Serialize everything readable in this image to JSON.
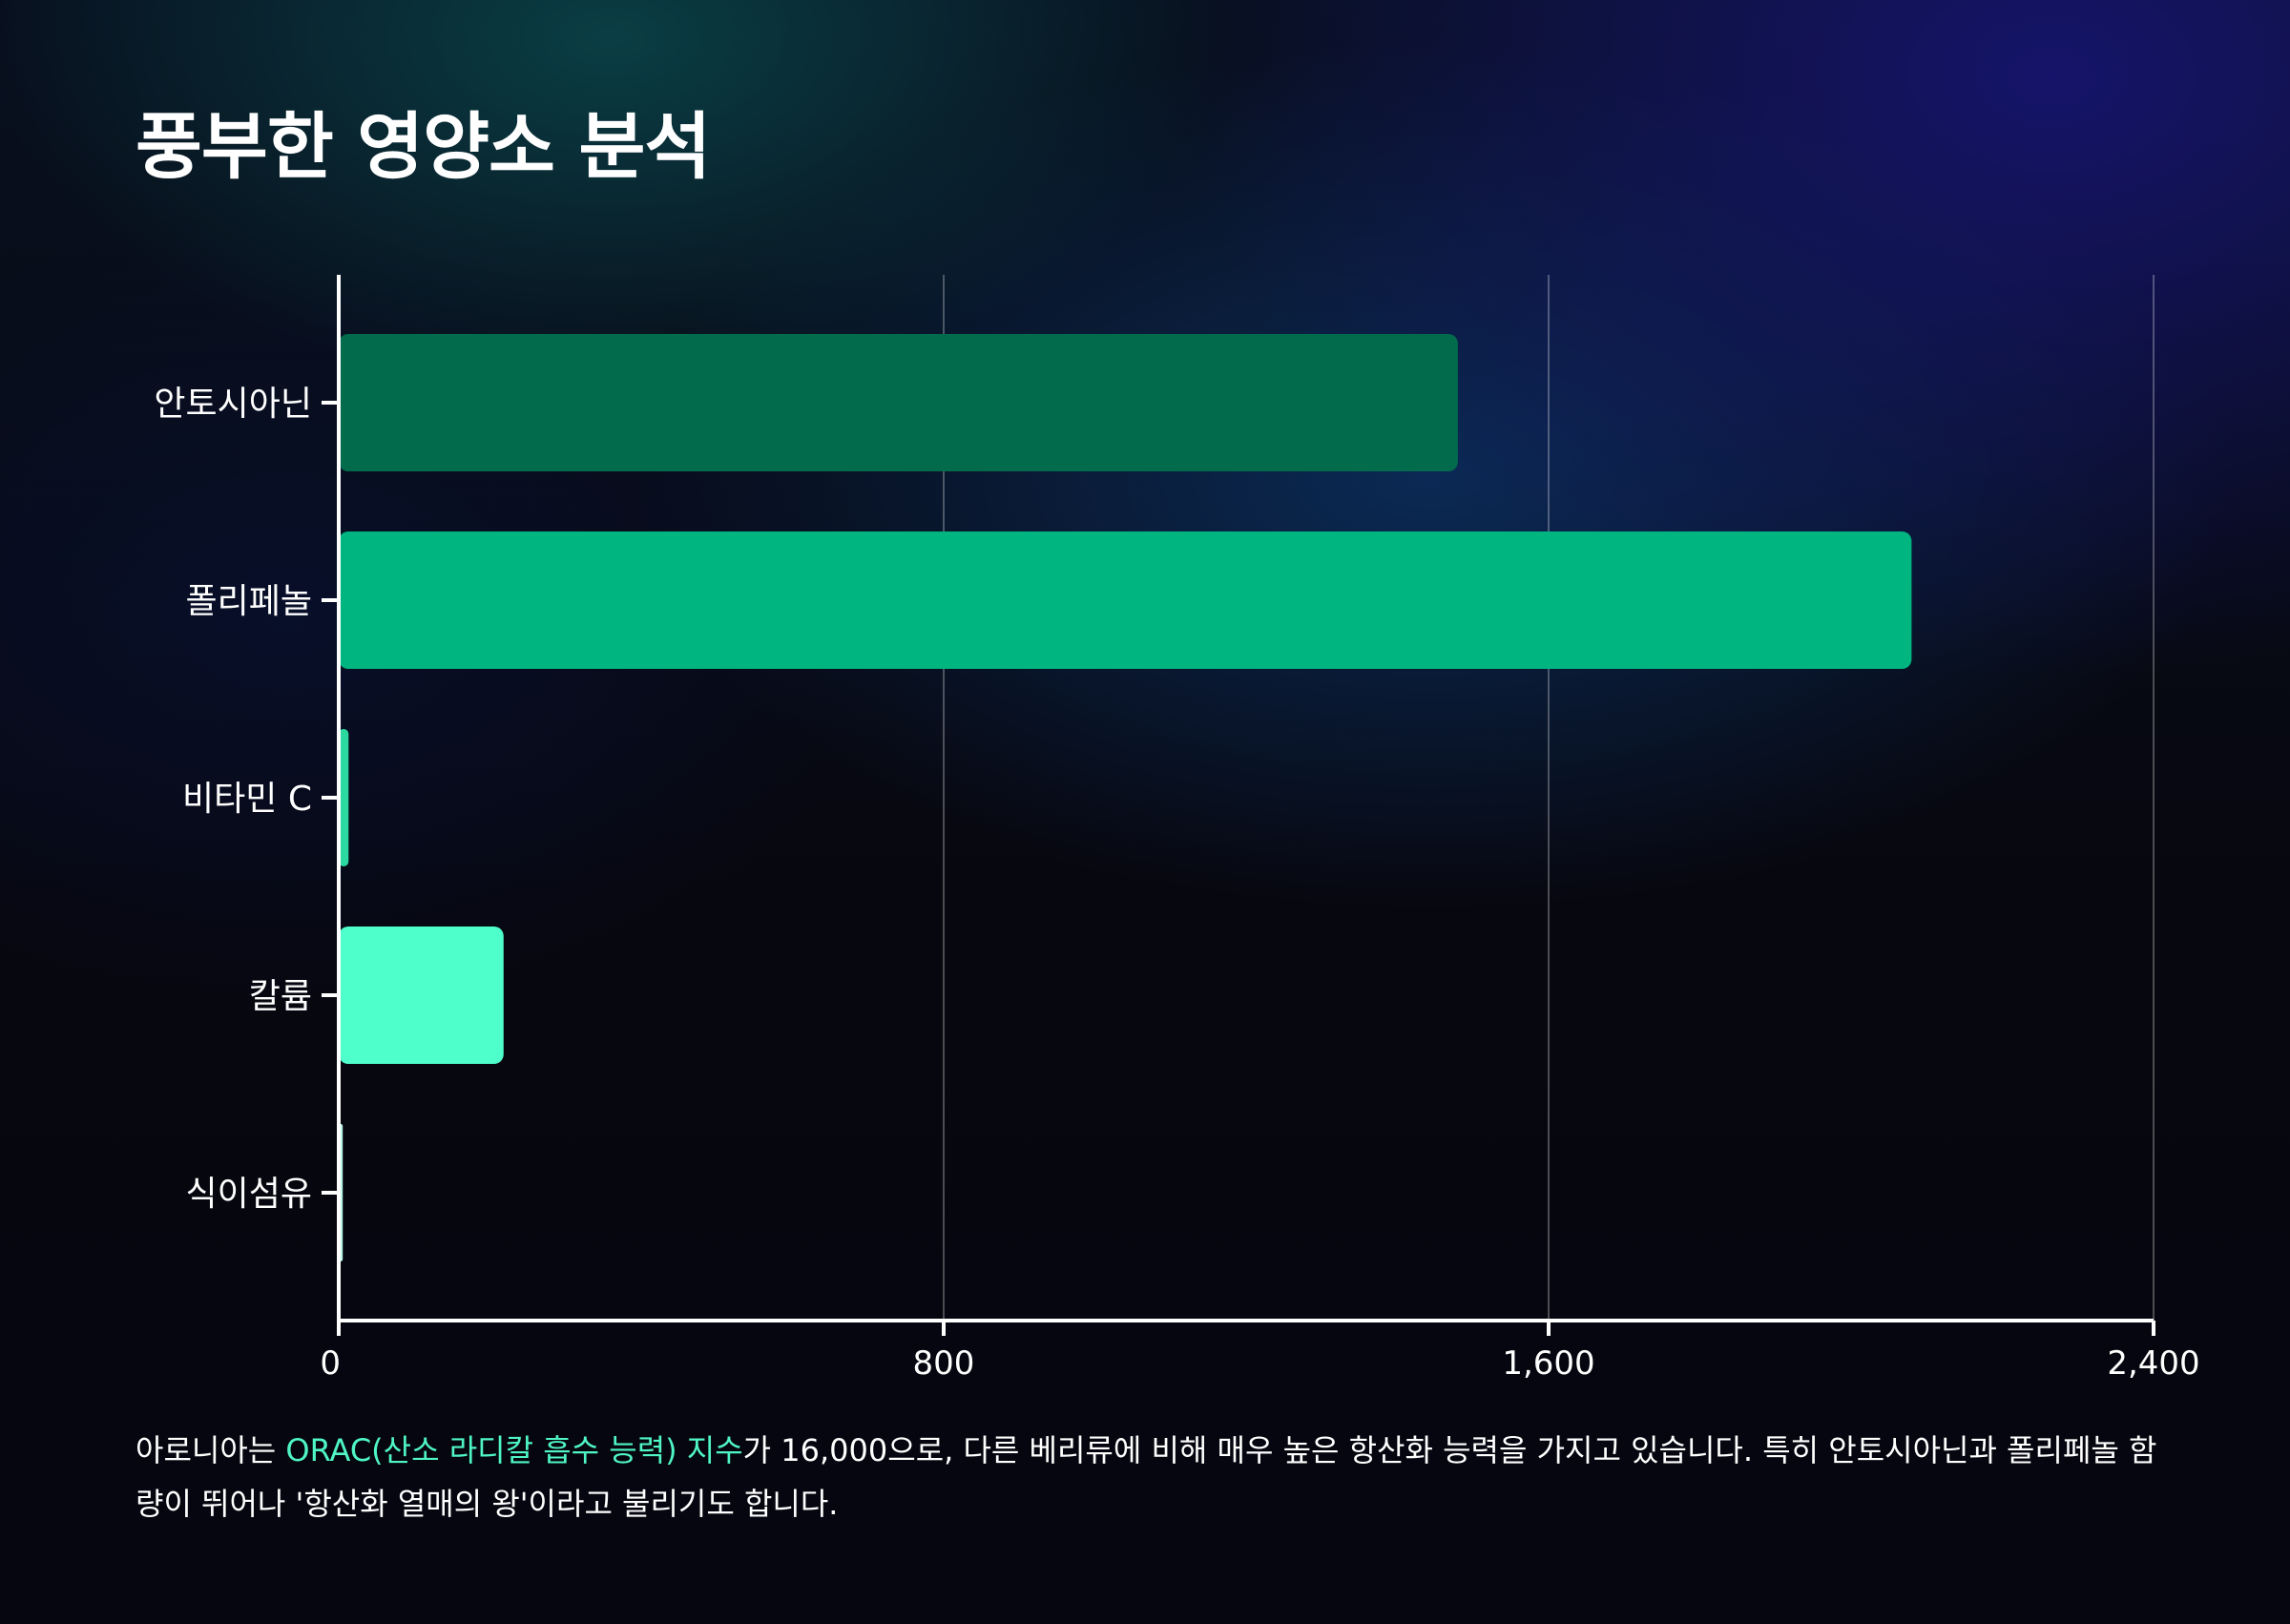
{
  "slide": {
    "title": "풍부한 영양소 분석",
    "description_prefix": "아로니아는 ",
    "description_highlight": "ORAC(산소 라디칼 흡수 능력) 지수",
    "description_rest": "가 16,000으로, 다른 베리류에 비해 매우 높은 항산화 능력을 가지고 있습니다. 특히 안토시아닌과 폴리페놀 함량이 뛰어나 '항산화 열매의 왕'이라고 불리기도 합니다."
  },
  "chart_data": {
    "type": "bar",
    "orientation": "horizontal",
    "categories": [
      "안토시아닌",
      "폴리페놀",
      "비타민 C",
      "칼륨",
      "식이섬유"
    ],
    "values": [
      1480,
      2080,
      13,
      218,
      5.3
    ],
    "colors": [
      "#026b4b",
      "#00b57f",
      "#2bd9a1",
      "#4effcb",
      "#b8f5e6"
    ],
    "xlim": [
      0,
      2400
    ],
    "xticks": [
      0,
      800,
      1600,
      2400
    ],
    "xtick_labels": [
      "0",
      "800",
      "1,600",
      "2,400"
    ],
    "grid": true,
    "xlabel": "",
    "ylabel": ""
  }
}
